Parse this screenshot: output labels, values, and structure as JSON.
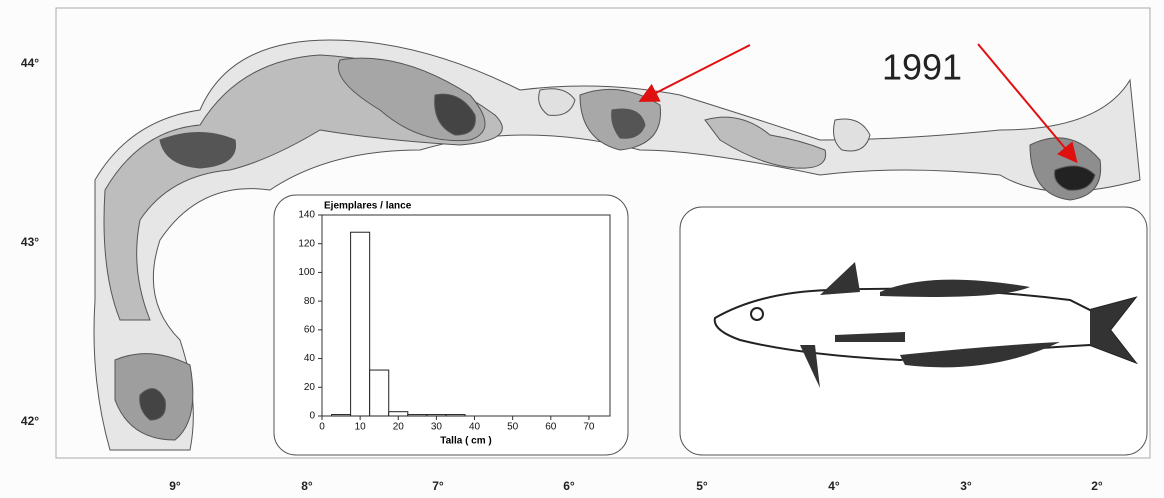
{
  "map": {
    "year_label": "1991",
    "lat_labels": [
      "44°",
      "43°",
      "42°"
    ],
    "lon_labels": [
      "9°",
      "8°",
      "7°",
      "6°",
      "5°",
      "4°",
      "3°",
      "2°"
    ]
  },
  "chart_data": {
    "type": "histogram",
    "title": "Ejemplares / lance",
    "x_label": "Talla ( cm )",
    "bins": [
      2.5,
      7.5,
      12.5,
      17.5,
      22.5,
      27.5,
      32.5,
      37.5
    ],
    "values": [
      1,
      128,
      32,
      3,
      1,
      1,
      1
    ],
    "color": "#ffffff",
    "xlim": [
      0,
      75
    ],
    "xticks": [
      0,
      10,
      20,
      30,
      40,
      50,
      60,
      70
    ],
    "ylim": [
      0,
      140
    ],
    "yticks": [
      0,
      20,
      40,
      60,
      80,
      100,
      120,
      140
    ]
  }
}
